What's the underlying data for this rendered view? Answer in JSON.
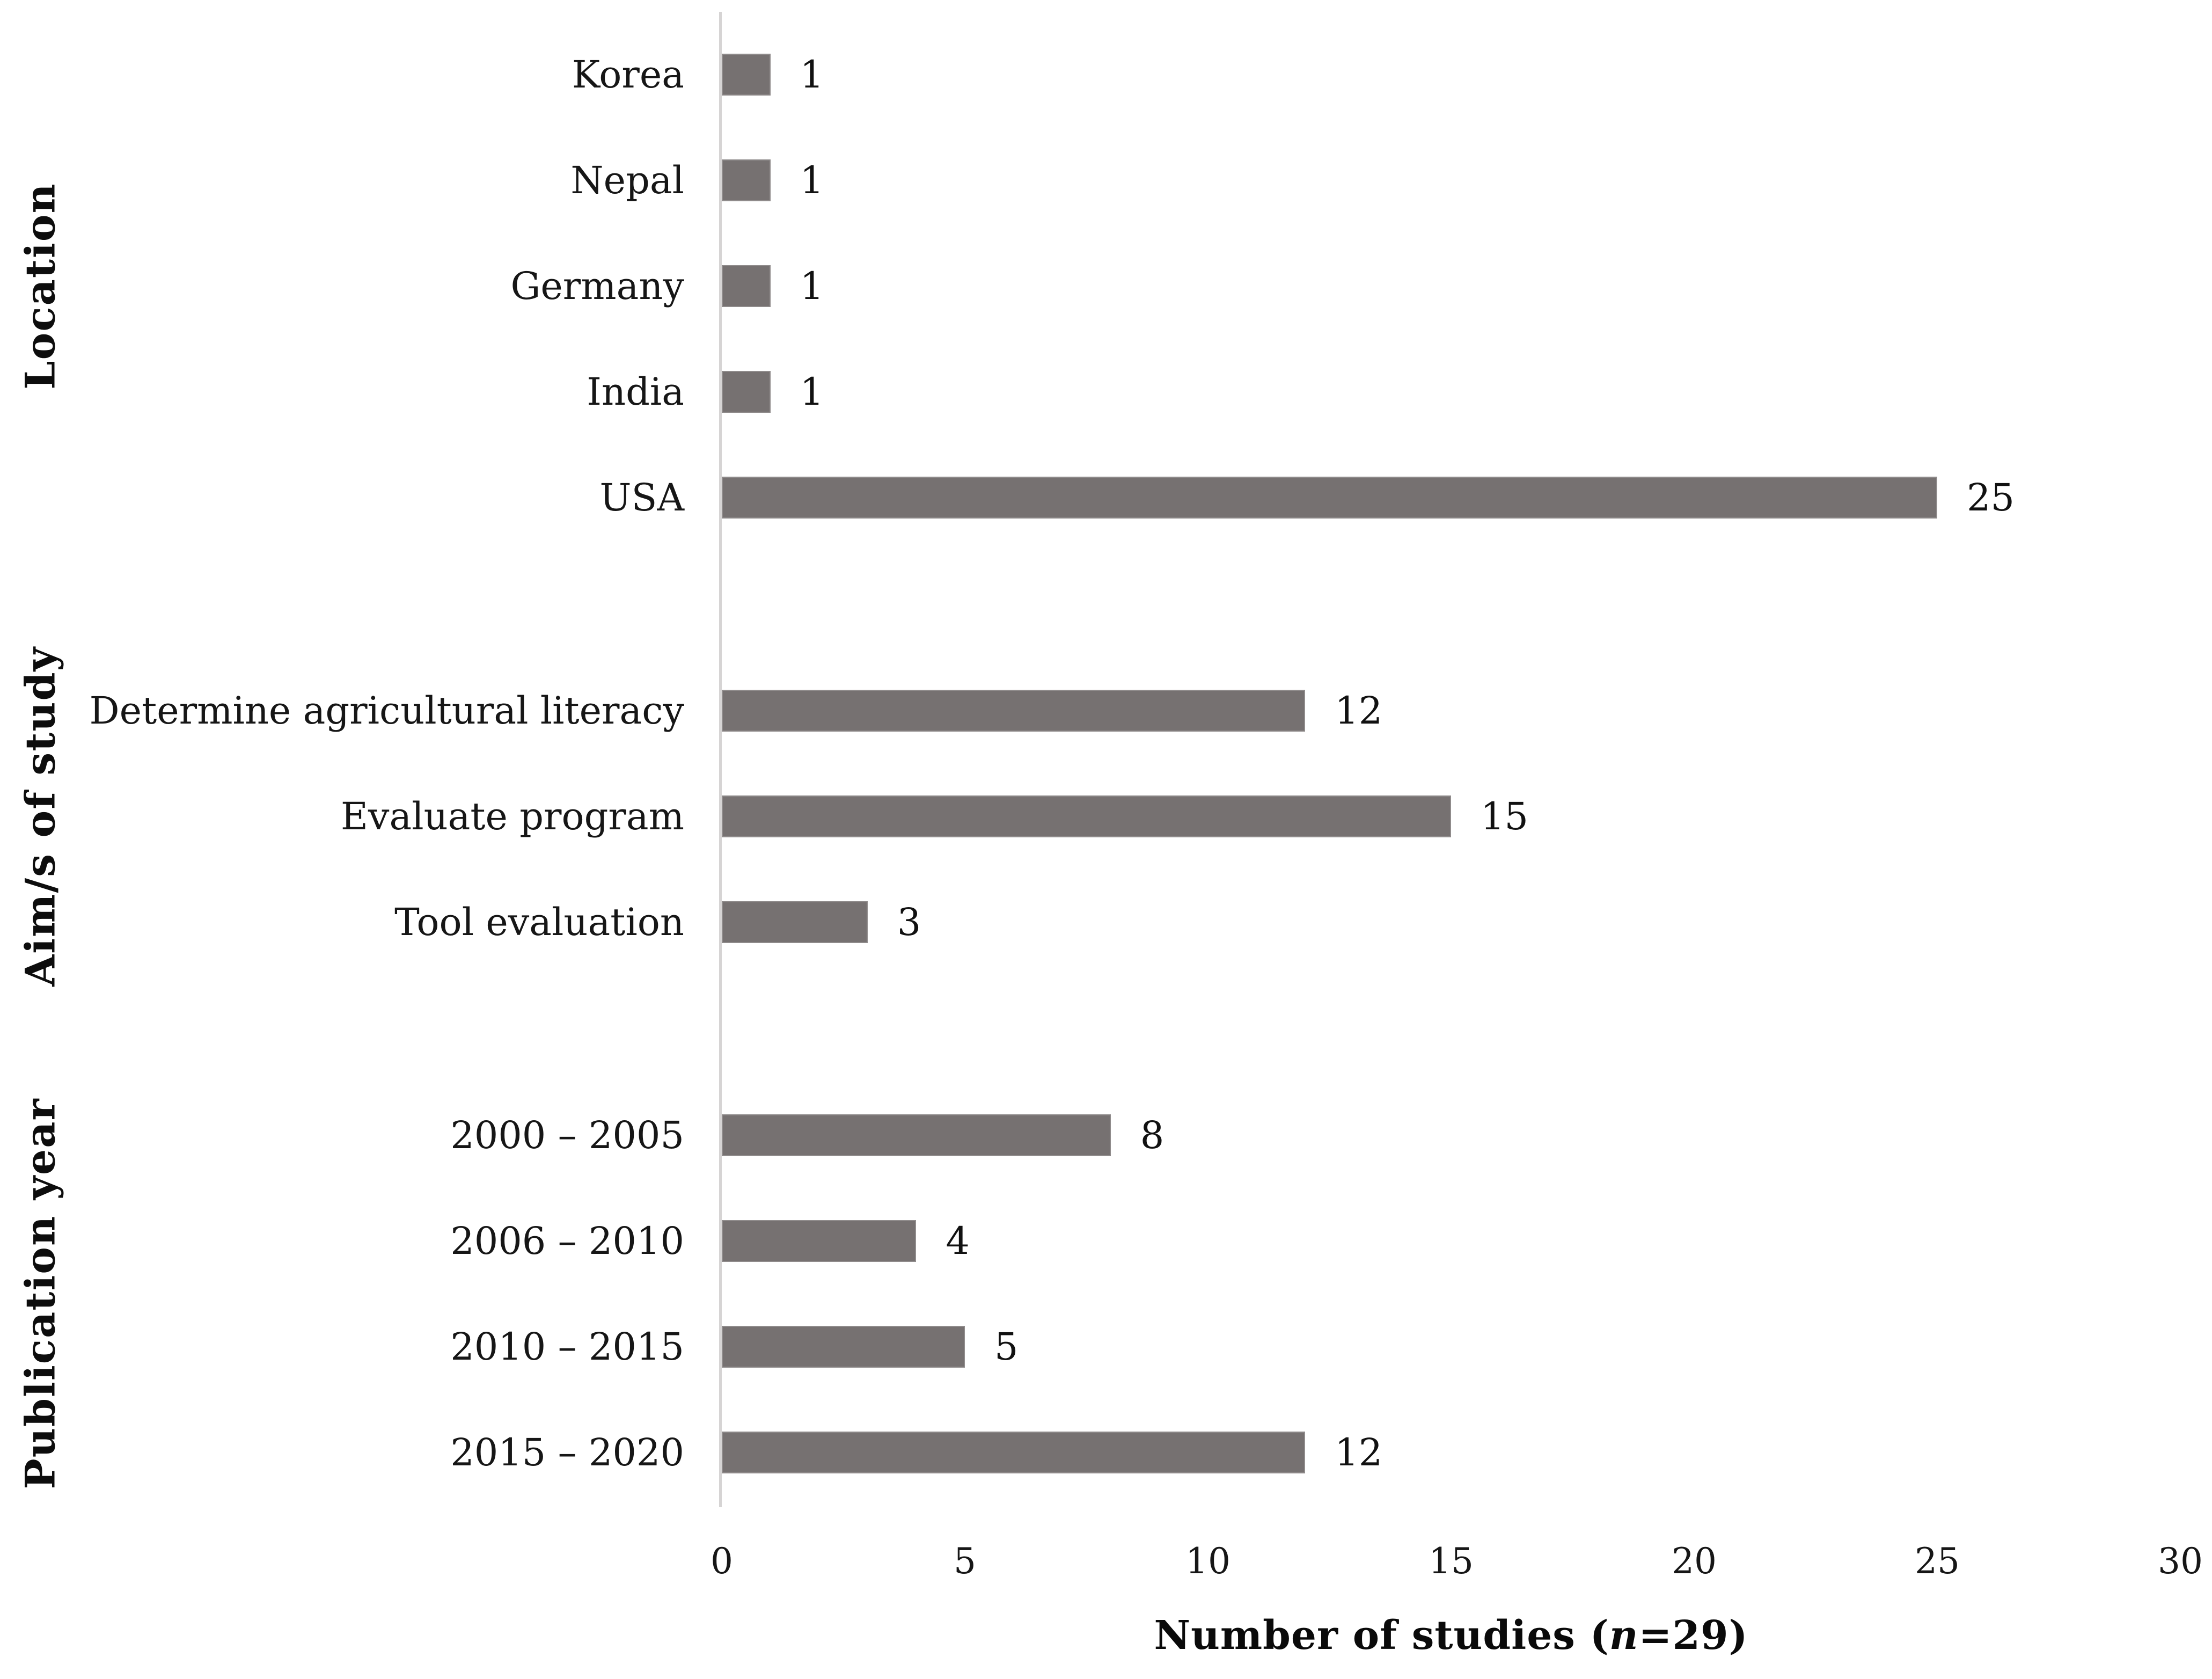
{
  "figure": {
    "axis_title": {
      "prefix": "Number of studies (",
      "italic": "n",
      "suffix": "=29)"
    }
  },
  "chart_data": {
    "type": "bar",
    "orientation": "horizontal",
    "title": "",
    "xlabel": "Number of studies (n=29)",
    "ylabel": "",
    "xlim": [
      0,
      30
    ],
    "x_ticks": [
      0,
      5,
      10,
      15,
      20,
      25,
      30
    ],
    "grid": false,
    "legend": false,
    "bar_color": "#767171",
    "axis_line_color": "#d6d4d4",
    "groups": [
      {
        "name": "Location",
        "categories": [
          "Korea",
          "Nepal",
          "Germany",
          "India",
          "USA"
        ],
        "values": [
          1,
          1,
          1,
          1,
          25
        ]
      },
      {
        "name": "Aim/s of study",
        "categories": [
          "Determine agricultural literacy",
          "Evaluate program",
          "Tool evaluation"
        ],
        "values": [
          12,
          15,
          3
        ]
      },
      {
        "name": "Publication year",
        "categories": [
          "2000 – 2005",
          "2006 – 2010",
          "2010 – 2015",
          "2015 – 2020"
        ],
        "values": [
          8,
          4,
          5,
          12
        ]
      }
    ]
  }
}
